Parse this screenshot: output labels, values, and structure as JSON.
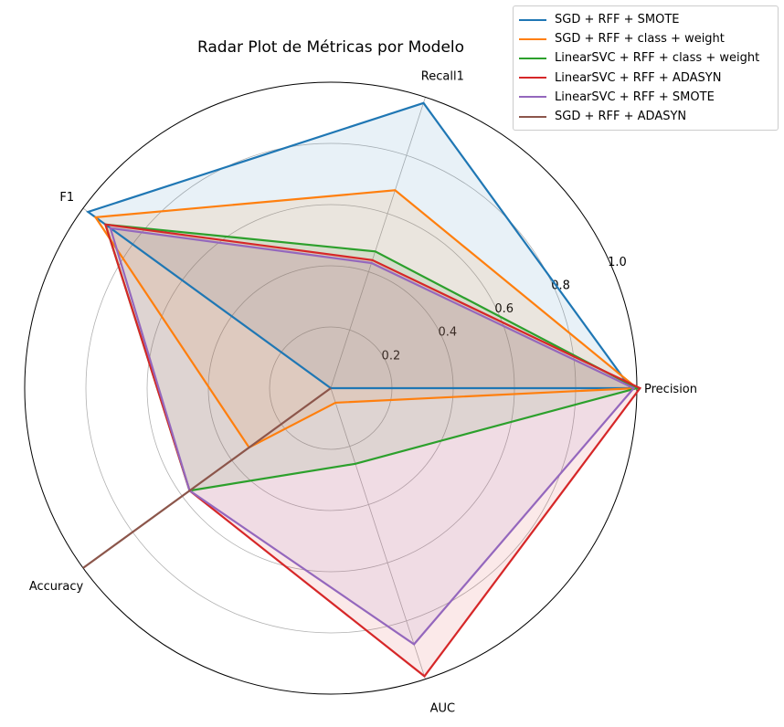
{
  "chart_data": {
    "type": "radar",
    "title": "Radar Plot de Métricas por Modelo",
    "axes": [
      "Precision",
      "Recall1",
      "F1",
      "Accuracy",
      "AUC"
    ],
    "rlim": [
      0,
      1.0
    ],
    "rticks": [
      "0.2",
      "0.4",
      "0.6",
      "0.8",
      "1.0"
    ],
    "rtick_values": [
      0.2,
      0.4,
      0.6,
      0.8,
      1.0
    ],
    "grid": true,
    "legend_position": "top-right",
    "series": [
      {
        "name": "SGD + RFF + SMOTE",
        "color": "#1f77b4",
        "values": [
          0.98,
          0.98,
          0.98,
          0.0,
          0.0
        ]
      },
      {
        "name": "SGD + RFF + class + weight",
        "color": "#ff7f0e",
        "values": [
          1.0,
          0.68,
          0.95,
          0.33,
          0.05
        ]
      },
      {
        "name": "LinearSVC + RFF + class + weight",
        "color": "#2ca02c",
        "values": [
          1.0,
          0.47,
          0.91,
          0.57,
          0.26
        ]
      },
      {
        "name": "LinearSVC + RFF + ADASYN",
        "color": "#d62728",
        "values": [
          1.01,
          0.44,
          0.91,
          0.57,
          0.99
        ]
      },
      {
        "name": "LinearSVC + RFF + SMOTE",
        "color": "#9467bd",
        "values": [
          0.99,
          0.43,
          0.89,
          0.57,
          0.88
        ]
      },
      {
        "name": "SGD + RFF + ADASYN",
        "color": "#8c564b",
        "values": [
          0.0,
          0.0,
          0.0,
          1.0,
          0.0
        ]
      }
    ]
  }
}
